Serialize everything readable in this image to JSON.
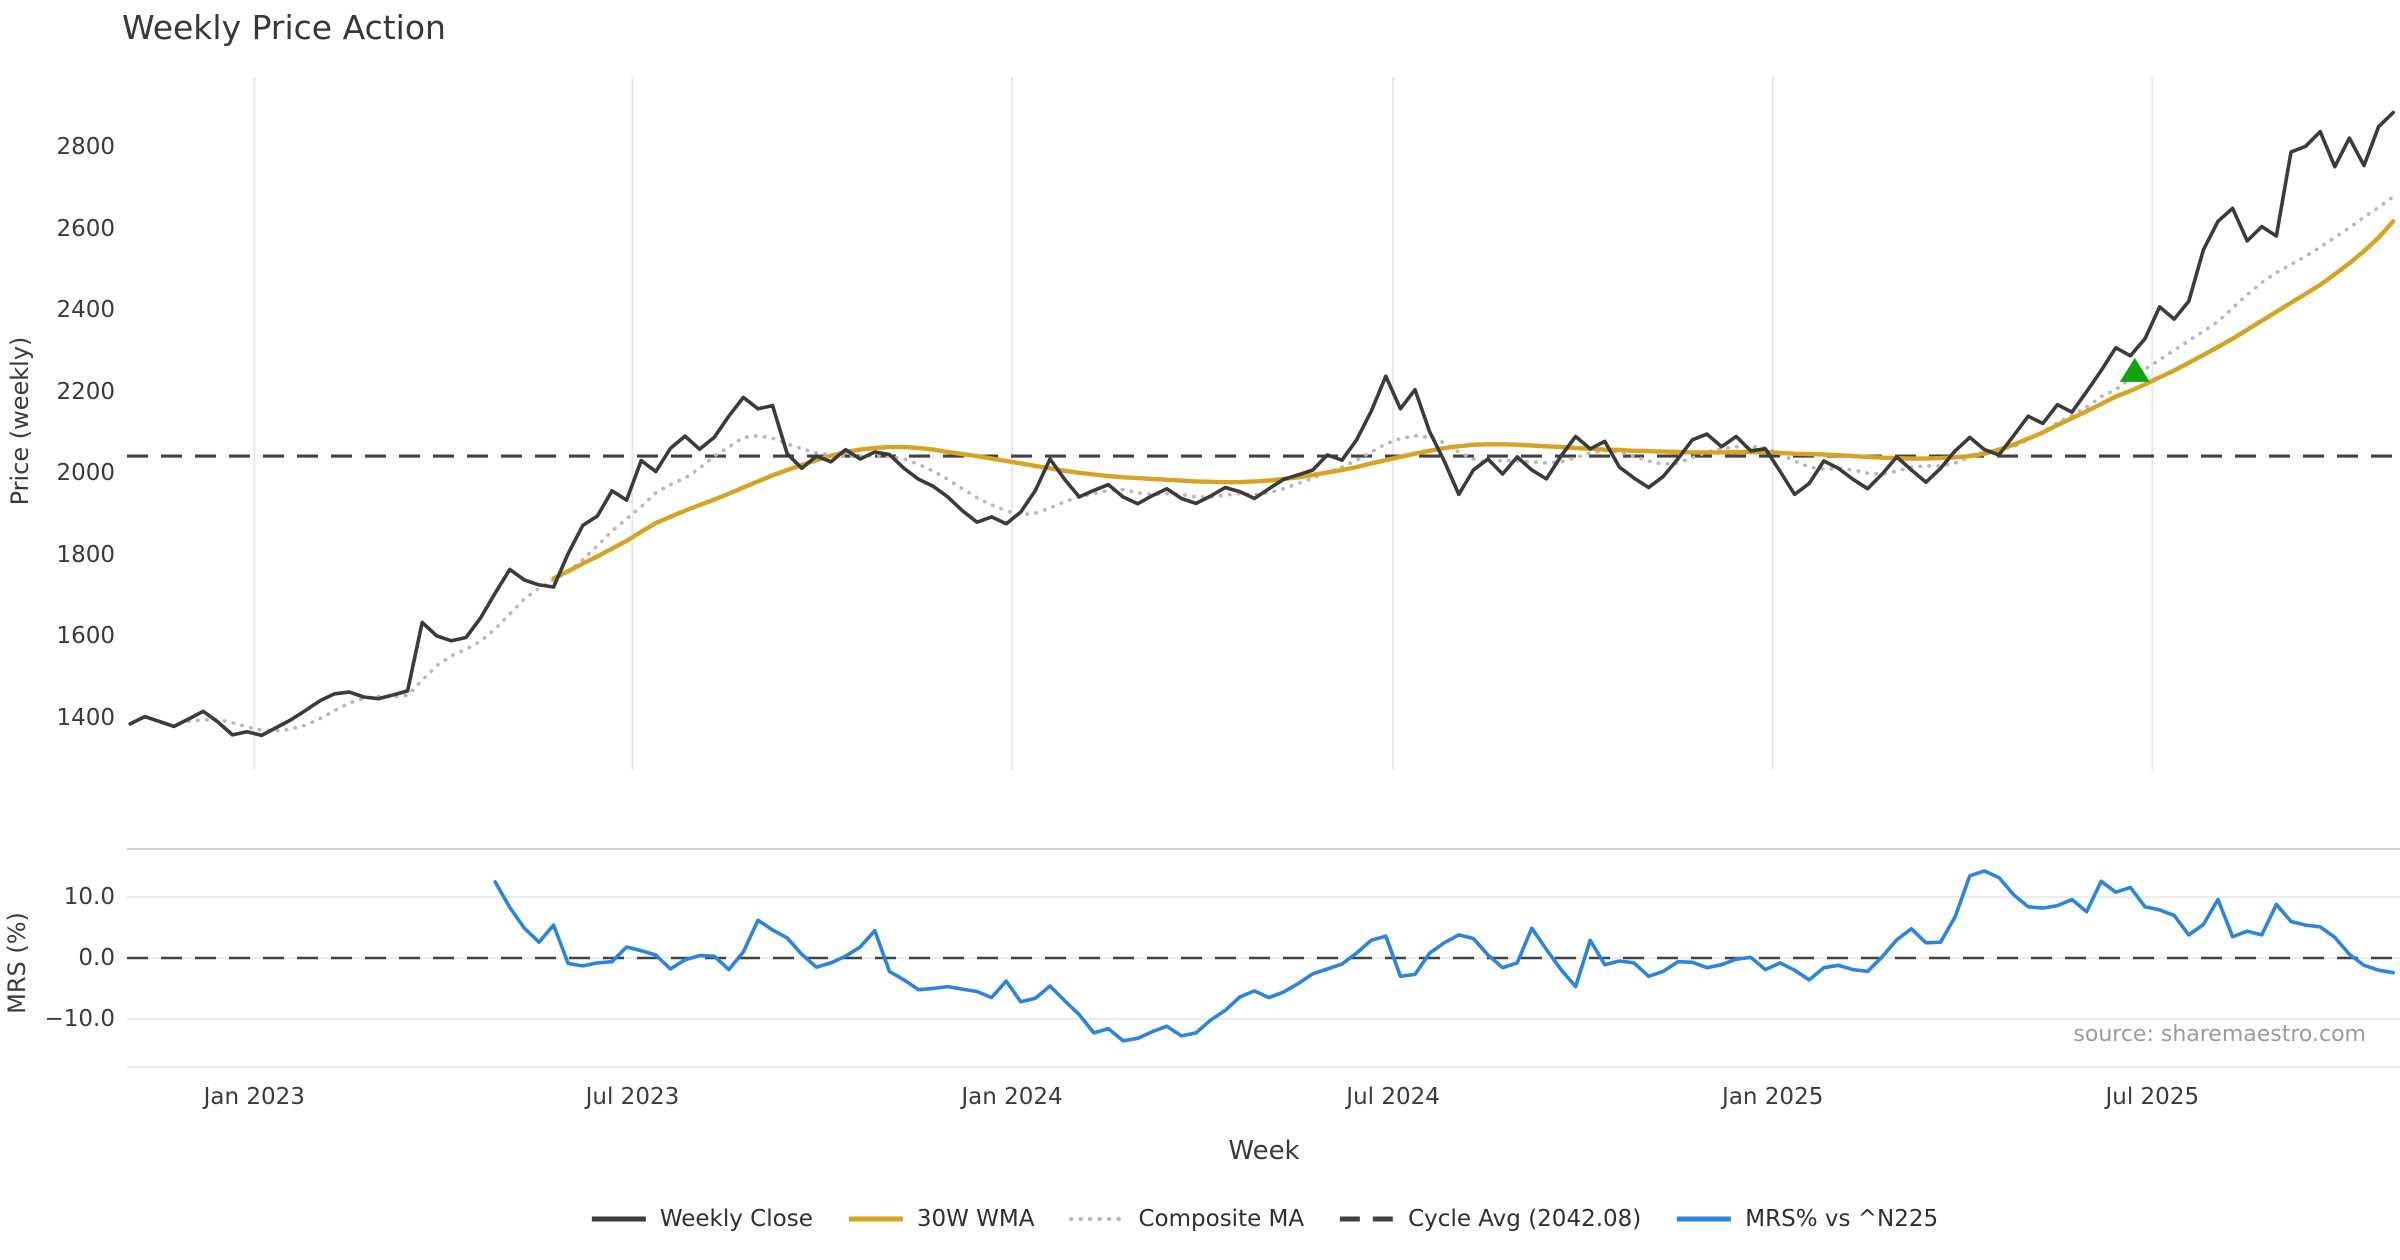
{
  "title": "Weekly Price Action",
  "source_note": "source: sharemaestro.com",
  "axes": {
    "price": {
      "label": "Price (weekly)",
      "ticks": [
        2800,
        2600,
        2400,
        2200,
        2000,
        1800,
        1600,
        1400
      ],
      "ylim": [
        1272,
        2972
      ]
    },
    "mrs": {
      "label": "MRS (%)",
      "ticks": [
        10.0,
        0.0,
        -10.0
      ],
      "tick_labels": [
        "10.0",
        "0.0",
        "−10.0"
      ],
      "ylim": [
        -17.9,
        17.9
      ]
    },
    "x": {
      "label": "Week",
      "gridlines": [
        {
          "week": 8.5,
          "label": "Jan 2023"
        },
        {
          "week": 34.4,
          "label": "Jul 2023"
        },
        {
          "week": 60.4,
          "label": "Jan 2024"
        },
        {
          "week": 86.5,
          "label": "Jul 2024"
        },
        {
          "week": 112.5,
          "label": "Jan 2025"
        },
        {
          "week": 138.5,
          "label": "Jul 2025"
        }
      ]
    }
  },
  "colors": {
    "weekly_close": "#3b3b3b",
    "wma_30w": "#d6a323",
    "composite_ma": "#b9b9b9",
    "cycle_avg": "#424242",
    "mrs": "#2c85dc",
    "signal_marker": "#10a310",
    "gridline_top": "#e8e8e8",
    "gridline_bottom": "#ececec",
    "panel_spine": "#cfcfcf",
    "text": "#3a3a3a",
    "source_text": "#9b9b9b"
  },
  "legend": [
    {
      "label": "Weekly Close",
      "color": "#3b3b3b",
      "style": "solid"
    },
    {
      "label": "30W WMA",
      "color": "#d6a323",
      "style": "solid"
    },
    {
      "label": "Composite MA",
      "color": "#b9b9b9",
      "style": "dotted"
    },
    {
      "label": "Cycle Avg (2042.08)",
      "color": "#424242",
      "style": "dashed"
    },
    {
      "label": "MRS% vs ^N225",
      "color": "#2c85dc",
      "style": "solid"
    }
  ],
  "chart_data": [
    {
      "type": "line",
      "panel": "price",
      "title": "Weekly Price Action",
      "xlabel": "Week",
      "ylabel": "Price (weekly)",
      "x_unit": "week_index",
      "ylim": [
        1272,
        2972
      ],
      "grid": "vertical-only",
      "cycle_avg_value": 2042.08,
      "signal_marker": {
        "shape": "triangle-up",
        "week": 137.3,
        "price": 2251,
        "color": "#10a310"
      },
      "series": [
        {
          "name": "Weekly Close",
          "start_week": 0,
          "values": [
            1385,
            1403,
            1391,
            1379,
            1397,
            1416,
            1390,
            1358,
            1366,
            1357,
            1376,
            1395,
            1418,
            1442,
            1459,
            1463,
            1451,
            1447,
            1456,
            1466,
            1634,
            1601,
            1589,
            1597,
            1645,
            1706,
            1764,
            1738,
            1726,
            1721,
            1803,
            1872,
            1895,
            1957,
            1934,
            2031,
            2004,
            2061,
            2091,
            2059,
            2088,
            2140,
            2186,
            2158,
            2166,
            2048,
            2012,
            2042,
            2028,
            2058,
            2035,
            2052,
            2046,
            2012,
            1985,
            1968,
            1942,
            1908,
            1880,
            1893,
            1876,
            1905,
            1958,
            2035,
            1985,
            1942,
            1958,
            1972,
            1942,
            1925,
            1945,
            1962,
            1938,
            1926,
            1944,
            1965,
            1955,
            1938,
            1962,
            1985,
            1996,
            2008,
            2045,
            2032,
            2082,
            2152,
            2238,
            2158,
            2205,
            2102,
            2030,
            1948,
            2008,
            2035,
            1998,
            2040,
            2008,
            1986,
            2042,
            2090,
            2060,
            2078,
            2015,
            1988,
            1965,
            1992,
            2035,
            2082,
            2096,
            2065,
            2090,
            2055,
            2060,
            2005,
            1948,
            1975,
            2030,
            2012,
            1985,
            1962,
            1998,
            2040,
            2008,
            1978,
            2012,
            2055,
            2088,
            2058,
            2045,
            2092,
            2140,
            2122,
            2168,
            2150,
            2200,
            2252,
            2308,
            2288,
            2330,
            2408,
            2378,
            2422,
            2548,
            2618,
            2650,
            2570,
            2605,
            2582,
            2788,
            2802,
            2838,
            2752,
            2822,
            2755,
            2850,
            2885
          ]
        },
        {
          "name": "30W WMA",
          "start_week": 29,
          "values": [
            1742,
            1760,
            1778,
            1796,
            1815,
            1834,
            1856,
            1878,
            1893,
            1908,
            1922,
            1935,
            1950,
            1965,
            1980,
            1995,
            2008,
            2020,
            2032,
            2043,
            2052,
            2058,
            2062,
            2064,
            2064,
            2062,
            2058,
            2052,
            2047,
            2042,
            2036,
            2030,
            2024,
            2018,
            2012,
            2006,
            2001,
            1997,
            1993,
            1990,
            1988,
            1986,
            1984,
            1982,
            1980,
            1979,
            1978,
            1978,
            1980,
            1982,
            1986,
            1990,
            1996,
            2002,
            2008,
            2015,
            2024,
            2032,
            2040,
            2048,
            2055,
            2062,
            2066,
            2070,
            2071,
            2071,
            2070,
            2068,
            2066,
            2064,
            2062,
            2060,
            2058,
            2057,
            2055,
            2054,
            2053,
            2052,
            2051,
            2051,
            2051,
            2052,
            2052,
            2052,
            2050,
            2048,
            2047,
            2046,
            2044,
            2042,
            2040,
            2038,
            2037,
            2036,
            2036,
            2037,
            2039,
            2042,
            2048,
            2058,
            2070,
            2085,
            2100,
            2118,
            2135,
            2152,
            2170,
            2188,
            2202,
            2218,
            2235,
            2252,
            2271,
            2290,
            2310,
            2330,
            2352,
            2374,
            2396,
            2418,
            2440,
            2462,
            2488,
            2515,
            2545,
            2578,
            2618
          ]
        },
        {
          "name": "Composite MA",
          "start_week": 4,
          "values": [
            1392,
            1395,
            1396,
            1388,
            1378,
            1370,
            1368,
            1372,
            1382,
            1398,
            1418,
            1436,
            1448,
            1452,
            1452,
            1455,
            1492,
            1528,
            1552,
            1568,
            1588,
            1618,
            1655,
            1692,
            1718,
            1738,
            1758,
            1788,
            1822,
            1858,
            1888,
            1918,
            1952,
            1972,
            1988,
            2012,
            2042,
            2064,
            2088,
            2092,
            2086,
            2072,
            2060,
            2050,
            2045,
            2042,
            2042,
            2044,
            2042,
            2035,
            2022,
            2005,
            1985,
            1962,
            1940,
            1922,
            1908,
            1898,
            1902,
            1915,
            1930,
            1942,
            1950,
            1958,
            1960,
            1952,
            1948,
            1950,
            1948,
            1942,
            1942,
            1946,
            1950,
            1948,
            1952,
            1962,
            1975,
            1988,
            2002,
            2015,
            2032,
            2052,
            2072,
            2085,
            2092,
            2088,
            2075,
            2052,
            2035,
            2025,
            2032,
            2030,
            2028,
            2025,
            2028,
            2038,
            2050,
            2056,
            2052,
            2042,
            2030,
            2022,
            2025,
            2038,
            2052,
            2060,
            2065,
            2066,
            2062,
            2048,
            2030,
            2015,
            2010,
            2012,
            2008,
            2000,
            1998,
            2005,
            2015,
            2018,
            2018,
            2025,
            2040,
            2052,
            2058,
            2065,
            2082,
            2102,
            2124,
            2142,
            2162,
            2188,
            2205,
            2232,
            2255,
            2278,
            2302,
            2325,
            2348,
            2372,
            2405,
            2438,
            2468,
            2492,
            2512,
            2532,
            2555,
            2578,
            2602,
            2628,
            2652,
            2678
          ]
        }
      ]
    },
    {
      "type": "line",
      "panel": "mrs",
      "ylabel": "MRS (%)",
      "x_unit": "week_index",
      "ylim": [
        -17.9,
        17.9
      ],
      "grid": "horizontal-only",
      "zero_line": 0.0,
      "series": [
        {
          "name": "MRS% vs ^N225",
          "start_week": 25,
          "values": [
            12.5,
            8.3,
            4.9,
            2.6,
            5.4,
            -0.9,
            -1.3,
            -0.8,
            -0.6,
            1.8,
            1.2,
            0.5,
            -1.8,
            -0.3,
            0.4,
            0.3,
            -1.9,
            1.0,
            6.2,
            4.6,
            3.3,
            0.6,
            -1.5,
            -0.8,
            0.3,
            1.8,
            4.5,
            -2.2,
            -3.6,
            -5.2,
            -5.0,
            -4.7,
            -5.1,
            -5.5,
            -6.5,
            -3.8,
            -7.2,
            -6.6,
            -4.6,
            -7.0,
            -9.3,
            -12.3,
            -11.6,
            -13.6,
            -13.2,
            -12.1,
            -11.2,
            -12.8,
            -12.3,
            -10.2,
            -8.6,
            -6.4,
            -5.4,
            -6.5,
            -5.6,
            -4.2,
            -2.6,
            -1.8,
            -1.0,
            0.8,
            2.9,
            3.6,
            -3.0,
            -2.7,
            0.8,
            2.5,
            3.8,
            3.2,
            0.5,
            -1.6,
            -0.8,
            4.9,
            1.4,
            -1.9,
            -4.7,
            2.9,
            -1.1,
            -0.5,
            -0.8,
            -3.0,
            -2.2,
            -0.6,
            -0.7,
            -1.6,
            -1.1,
            -0.2,
            0.1,
            -1.9,
            -0.8,
            -2.0,
            -3.6,
            -1.6,
            -1.2,
            -1.9,
            -2.2,
            0.2,
            3.0,
            4.8,
            2.5,
            2.6,
            6.8,
            13.5,
            14.3,
            13.2,
            10.4,
            8.4,
            8.2,
            8.6,
            9.6,
            7.6,
            12.6,
            10.8,
            11.6,
            8.4,
            7.9,
            7.0,
            3.8,
            5.5,
            9.6,
            3.5,
            4.4,
            3.8,
            8.8,
            6.0,
            5.4,
            5.1,
            3.4,
            0.6,
            -1.2,
            -2.0,
            -2.4
          ]
        }
      ]
    }
  ]
}
